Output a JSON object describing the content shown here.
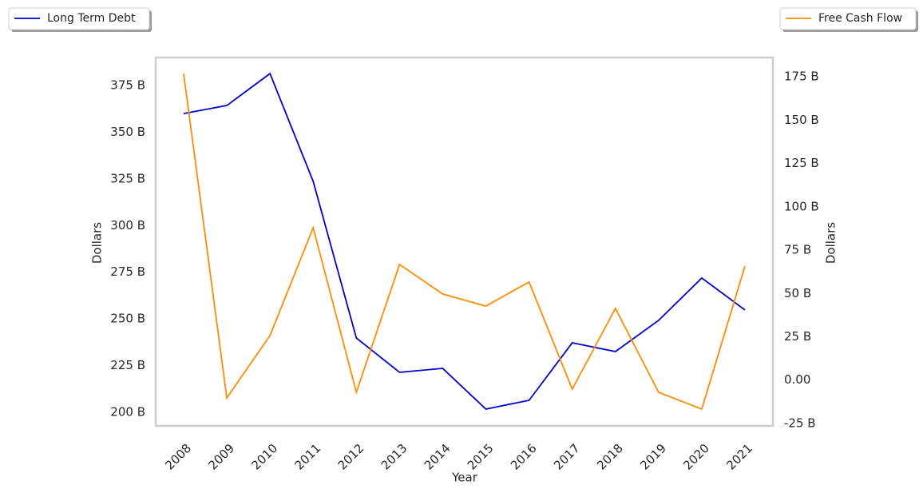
{
  "chart_data": {
    "type": "line",
    "xlabel": "Year",
    "ylabel": "Dollars",
    "y2label": "Dollars",
    "categories": [
      "2008",
      "2009",
      "2010",
      "2011",
      "2012",
      "2013",
      "2014",
      "2015",
      "2016",
      "2017",
      "2018",
      "2019",
      "2020",
      "2021"
    ],
    "series": [
      {
        "name": "Long Term Debt",
        "color": "#0000cd",
        "values": [
          360,
          364.3,
          381.4,
          323.7,
          239.8,
          221.4,
          223.5,
          201.7,
          206.4,
          237.2,
          232.5,
          249.2,
          271.9,
          254.8
        ]
      },
      {
        "name": "Free Cash Flow",
        "color": "#ff8c00",
        "axis": "y2",
        "values": [
          176.8,
          -10.3,
          25.7,
          87.9,
          -7,
          66.7,
          49.7,
          42.7,
          56.6,
          -5.2,
          41.4,
          -7,
          -16.7,
          65.8
        ]
      }
    ],
    "ylim": [
      192.7,
      390
    ],
    "yticks": [
      {
        "value": 200,
        "label": "200 B"
      },
      {
        "value": 225,
        "label": "225 B"
      },
      {
        "value": 250,
        "label": "250 B"
      },
      {
        "value": 275,
        "label": "275 B"
      },
      {
        "value": 300,
        "label": "300 B"
      },
      {
        "value": 325,
        "label": "325 B"
      },
      {
        "value": 350,
        "label": "350 B"
      },
      {
        "value": 375,
        "label": "375 B"
      }
    ],
    "y2lim": [
      -26.4,
      186.1
    ],
    "y2ticks": [
      {
        "value": -25,
        "label": "-25 B"
      },
      {
        "value": 0,
        "label": "0.00"
      },
      {
        "value": 25,
        "label": "25 B"
      },
      {
        "value": 50,
        "label": "50 B"
      },
      {
        "value": 75,
        "label": "75 B"
      },
      {
        "value": 100,
        "label": "100 B"
      },
      {
        "value": 125,
        "label": "125 B"
      },
      {
        "value": 150,
        "label": "150 B"
      },
      {
        "value": 175,
        "label": "175 B"
      }
    ]
  }
}
